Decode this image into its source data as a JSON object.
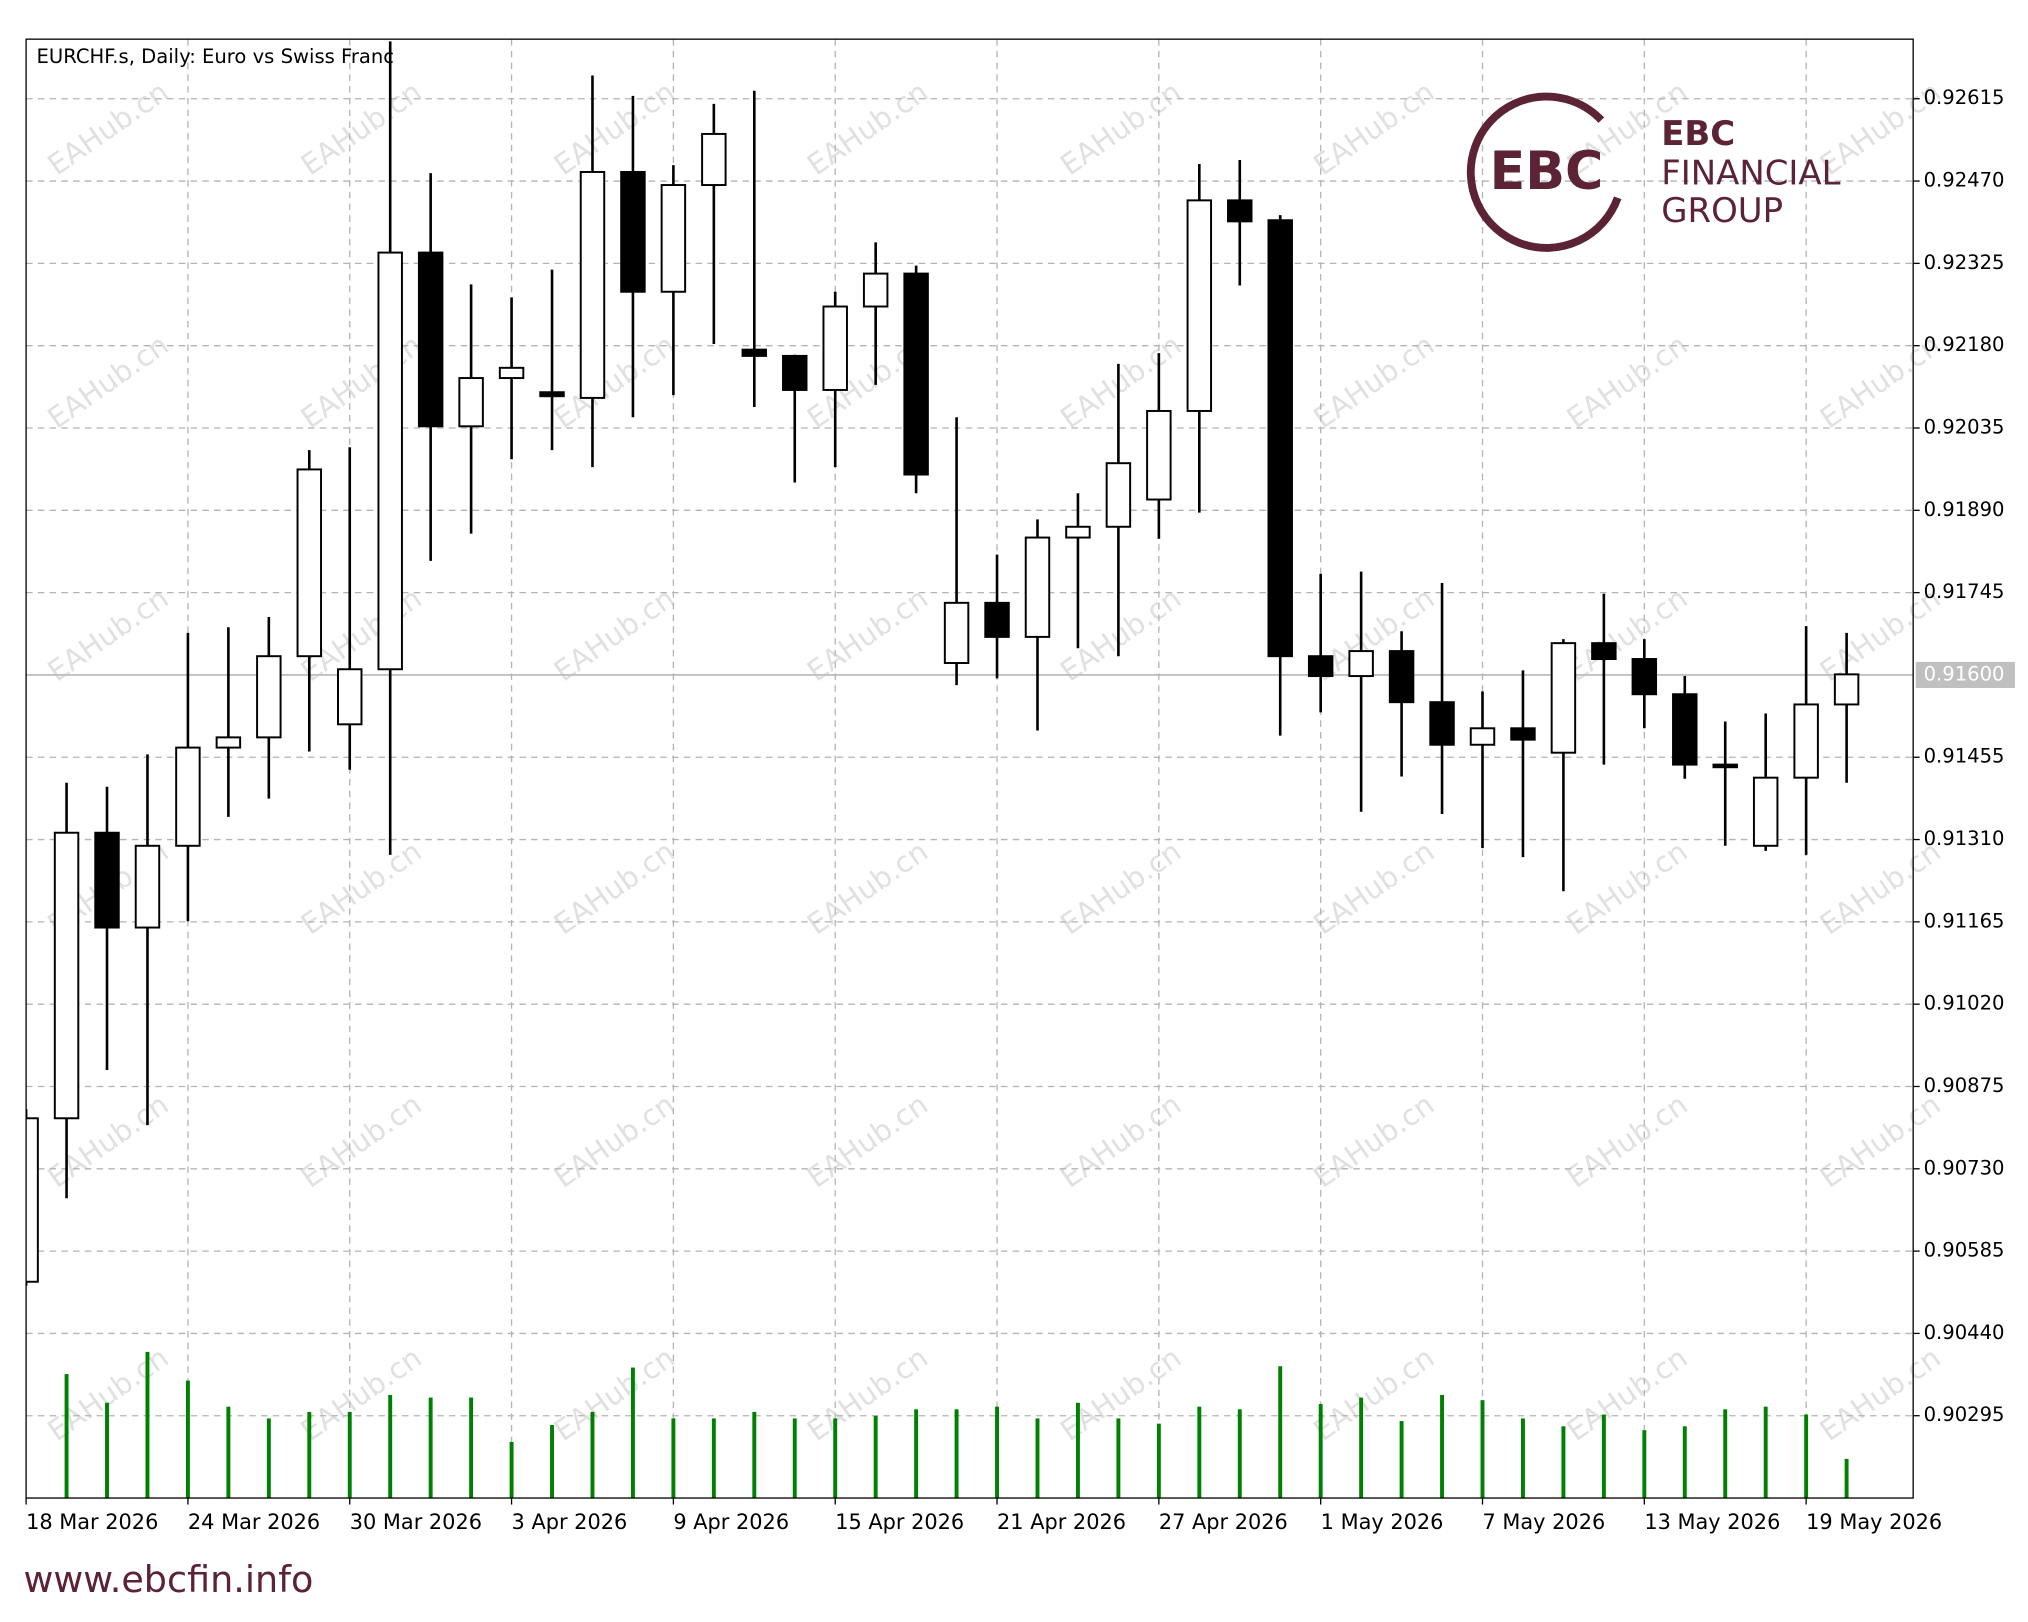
{
  "chart_data": {
    "type": "candlestick",
    "title": "EURCHF.s, Daily:  Euro vs Swiss Franc",
    "watermark": "EAHub.cn",
    "logo": {
      "mark": "EBC",
      "line1": "FINANCIAL",
      "line2": "GROUP"
    },
    "footer": "www.ebcfin.info",
    "categories": [
      "18 Mar 2026",
      null,
      null,
      null,
      "24 Mar 2026",
      null,
      null,
      null,
      "30 Mar 2026",
      null,
      null,
      null,
      "3 Apr 2026",
      null,
      null,
      null,
      "9 Apr 2026",
      null,
      null,
      null,
      "15 Apr 2026",
      null,
      null,
      null,
      "21 Apr 2026",
      null,
      null,
      null,
      "27 Apr 2026",
      null,
      null,
      null,
      "1 May 2026",
      null,
      null,
      null,
      "7 May 2026",
      null,
      null,
      null,
      "13 May 2026",
      null,
      null,
      null,
      "19 May 2026",
      null
    ],
    "open": [
      0.90531,
      0.90819,
      0.91322,
      0.91155,
      0.91299,
      0.91472,
      0.9149,
      0.91633,
      0.91513,
      0.9161,
      0.92344,
      0.92038,
      0.92123,
      0.92098,
      0.92088,
      0.92486,
      0.92275,
      0.92463,
      0.92173,
      0.92162,
      0.92102,
      0.92249,
      0.92307,
      0.91621,
      0.91727,
      0.91667,
      0.91842,
      0.91861,
      0.91909,
      0.92065,
      0.92436,
      0.92401,
      0.91633,
      0.91598,
      0.91642,
      0.91552,
      0.91477,
      0.91506,
      0.91463,
      0.91656,
      0.91628,
      0.91566,
      0.91442,
      0.91299,
      0.91419,
      0.91548
    ],
    "high": [
      0.90835,
      0.9141,
      0.91403,
      0.9146,
      0.91674,
      0.91684,
      0.91702,
      0.91996,
      0.92001,
      0.92716,
      0.92484,
      0.92288,
      0.92265,
      0.92314,
      0.92656,
      0.9262,
      0.92498,
      0.92606,
      0.92629,
      0.92164,
      0.92275,
      0.92362,
      0.92321,
      0.92054,
      0.91812,
      0.91874,
      0.9192,
      0.92148,
      0.92167,
      0.925,
      0.92507,
      0.9241,
      0.91778,
      0.91782,
      0.91677,
      0.91762,
      0.91571,
      0.91608,
      0.91663,
      0.91743,
      0.91663,
      0.91598,
      0.91518,
      0.91532,
      0.91686,
      0.91674
    ],
    "low": [
      0.90524,
      0.90678,
      0.90904,
      0.90807,
      0.91166,
      0.9135,
      0.91382,
      0.91465,
      0.91433,
      0.91283,
      0.91801,
      0.91849,
      0.9198,
      0.91996,
      0.91966,
      0.92054,
      0.92093,
      0.92183,
      0.92072,
      0.91939,
      0.91966,
      0.92111,
      0.9192,
      0.91582,
      0.91594,
      0.91502,
      0.91647,
      0.91633,
      0.9184,
      0.91886,
      0.92286,
      0.91493,
      0.91534,
      0.91359,
      0.91421,
      0.91355,
      0.91295,
      0.91279,
      0.91219,
      0.91442,
      0.91506,
      0.91417,
      0.91299,
      0.9129,
      0.91283,
      0.9141
    ],
    "close": [
      0.90819,
      0.91322,
      0.91155,
      0.91299,
      0.91472,
      0.9149,
      0.91633,
      0.91962,
      0.9161,
      0.92344,
      0.92038,
      0.92123,
      0.92141,
      0.92091,
      0.92486,
      0.92275,
      0.92463,
      0.92553,
      0.92162,
      0.92102,
      0.92249,
      0.92307,
      0.91953,
      0.91727,
      0.91667,
      0.91842,
      0.91861,
      0.91973,
      0.92065,
      0.92436,
      0.92399,
      0.91633,
      0.91598,
      0.91642,
      0.91552,
      0.91477,
      0.91506,
      0.91486,
      0.91656,
      0.91628,
      0.91566,
      0.91442,
      0.9144,
      0.91419,
      0.91548,
      0.91601
    ],
    "volume": [
      null,
      95,
      73,
      112,
      90,
      70,
      61,
      66,
      66,
      79,
      77,
      77,
      43,
      56,
      66,
      100,
      61,
      61,
      66,
      61,
      61,
      63,
      68,
      68,
      70,
      61,
      73,
      61,
      57,
      70,
      68,
      101,
      72,
      77,
      59,
      79,
      75,
      61,
      55,
      64,
      52,
      55,
      68,
      70,
      64,
      30
    ],
    "volume_color": "#008000",
    "ylim": [
      0.9015,
      0.9272
    ],
    "yticks": [
      0.90295,
      {
        "value": 0.9044,
        "label": "0.90440"
      },
      0.90585,
      {
        "value": 0.9073,
        "label": "0.90730"
      },
      0.90875,
      {
        "value": 0.9102,
        "label": "0.91020"
      },
      0.91165,
      {
        "value": 0.9131,
        "label": "0.91310"
      },
      0.91455,
      0.91745,
      {
        "value": 0.9189,
        "label": "0.91890"
      },
      0.92035,
      {
        "value": 0.9218,
        "label": "0.92180"
      },
      0.92325,
      {
        "value": 0.9247,
        "label": "0.92470"
      },
      0.92615
    ],
    "price_line": {
      "value": 0.916,
      "label": "0.91600"
    },
    "grid": true
  }
}
